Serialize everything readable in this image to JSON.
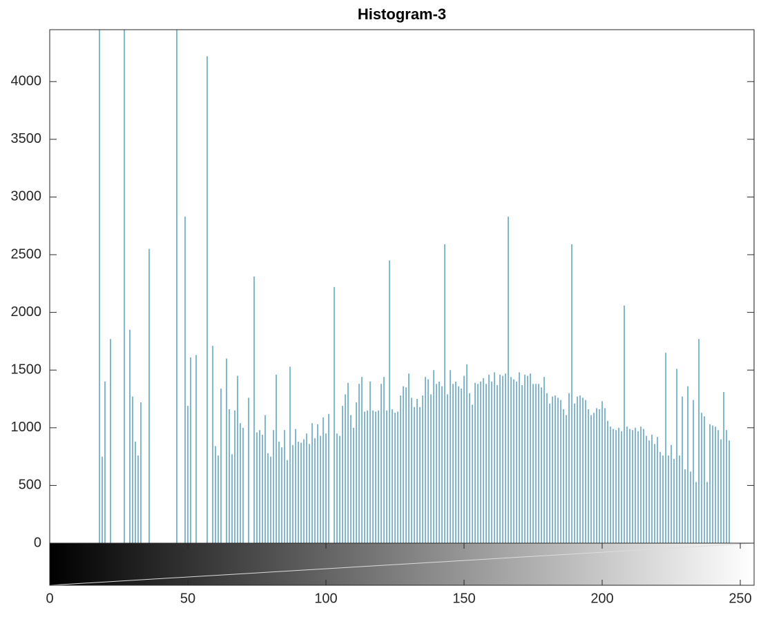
{
  "chart_data": {
    "type": "stem",
    "title": "Histogram-3",
    "color": "#3f8fb8",
    "x": [
      18,
      19,
      20,
      22,
      27,
      29,
      30,
      31,
      32,
      33,
      36,
      46,
      49,
      50,
      51,
      53,
      57,
      59,
      60,
      61,
      62,
      64,
      65,
      66,
      67,
      68,
      69,
      70,
      72,
      74,
      75,
      76,
      77,
      78,
      79,
      80,
      81,
      82,
      83,
      84,
      85,
      86,
      87,
      88,
      89,
      90,
      91,
      92,
      93,
      94,
      95,
      96,
      97,
      98,
      99,
      100,
      101,
      103,
      104,
      105,
      106,
      107,
      108,
      109,
      110,
      111,
      112,
      113,
      114,
      115,
      116,
      117,
      118,
      119,
      120,
      121,
      122,
      123,
      124,
      125,
      126,
      127,
      128,
      129,
      130,
      131,
      132,
      133,
      134,
      135,
      136,
      137,
      138,
      139,
      140,
      141,
      142,
      143,
      144,
      145,
      146,
      147,
      148,
      149,
      150,
      151,
      152,
      153,
      154,
      155,
      156,
      157,
      158,
      159,
      160,
      161,
      162,
      163,
      164,
      165,
      166,
      167,
      168,
      169,
      170,
      171,
      172,
      173,
      174,
      175,
      176,
      177,
      178,
      179,
      180,
      181,
      182,
      183,
      184,
      185,
      186,
      187,
      188,
      189,
      190,
      191,
      192,
      193,
      194,
      195,
      196,
      197,
      198,
      199,
      200,
      201,
      202,
      203,
      204,
      205,
      206,
      207,
      208,
      209,
      210,
      211,
      212,
      213,
      214,
      215,
      216,
      217,
      218,
      219,
      220,
      221,
      222,
      223,
      224,
      225,
      226,
      227,
      228,
      229,
      230,
      231,
      232,
      233,
      234,
      235,
      236,
      237,
      238,
      239,
      240,
      241,
      242,
      243,
      244,
      245,
      246,
      255
    ],
    "values": [
      4600,
      750,
      1400,
      1770,
      4600,
      1850,
      1270,
      880,
      760,
      1220,
      2550,
      4600,
      2830,
      1190,
      1610,
      1630,
      4220,
      1710,
      840,
      760,
      1340,
      1600,
      1160,
      770,
      1150,
      1450,
      1040,
      1000,
      1260,
      2310,
      960,
      980,
      940,
      1110,
      780,
      750,
      980,
      1460,
      880,
      830,
      980,
      720,
      1530,
      850,
      990,
      880,
      870,
      900,
      950,
      860,
      1040,
      910,
      1030,
      930,
      1090,
      950,
      1120,
      2220,
      950,
      930,
      1190,
      1290,
      1390,
      1110,
      1000,
      1220,
      1380,
      1440,
      1140,
      1150,
      1400,
      1150,
      1140,
      1150,
      1380,
      1440,
      1150,
      2450,
      1160,
      1130,
      1140,
      1280,
      1360,
      1350,
      1470,
      1260,
      1180,
      1250,
      1180,
      1280,
      1440,
      1420,
      1290,
      1500,
      1380,
      1400,
      1360,
      2590,
      1290,
      1500,
      1380,
      1400,
      1360,
      1340,
      1450,
      1550,
      1300,
      1200,
      1390,
      1380,
      1400,
      1430,
      1380,
      1460,
      1400,
      1480,
      1370,
      1460,
      1450,
      1470,
      2830,
      1440,
      1420,
      1400,
      1480,
      1370,
      1460,
      1450,
      1470,
      1380,
      1380,
      1380,
      1350,
      1440,
      1300,
      1210,
      1270,
      1280,
      1260,
      1240,
      1160,
      1110,
      1300,
      2590,
      1210,
      1270,
      1280,
      1260,
      1240,
      1160,
      1110,
      1130,
      1170,
      1160,
      1230,
      1170,
      1060,
      1010,
      990,
      980,
      1000,
      970,
      2060,
      1010,
      990,
      980,
      1000,
      970,
      1010,
      990,
      930,
      890,
      940,
      860,
      920,
      790,
      760,
      1650,
      760,
      850,
      730,
      1510,
      760,
      1270,
      640,
      1360,
      620,
      1240,
      530,
      1770,
      1130,
      1100,
      530,
      1030,
      1020,
      1010,
      980,
      900,
      1310,
      980,
      890,
      4600
    ],
    "xlim": [
      0,
      255
    ],
    "xticks": [
      0,
      50,
      100,
      150,
      200,
      250
    ],
    "ylim": [
      0,
      4450
    ],
    "yticks": [
      0,
      500,
      1000,
      1500,
      2000,
      2500,
      3000,
      3500,
      4000
    ]
  }
}
